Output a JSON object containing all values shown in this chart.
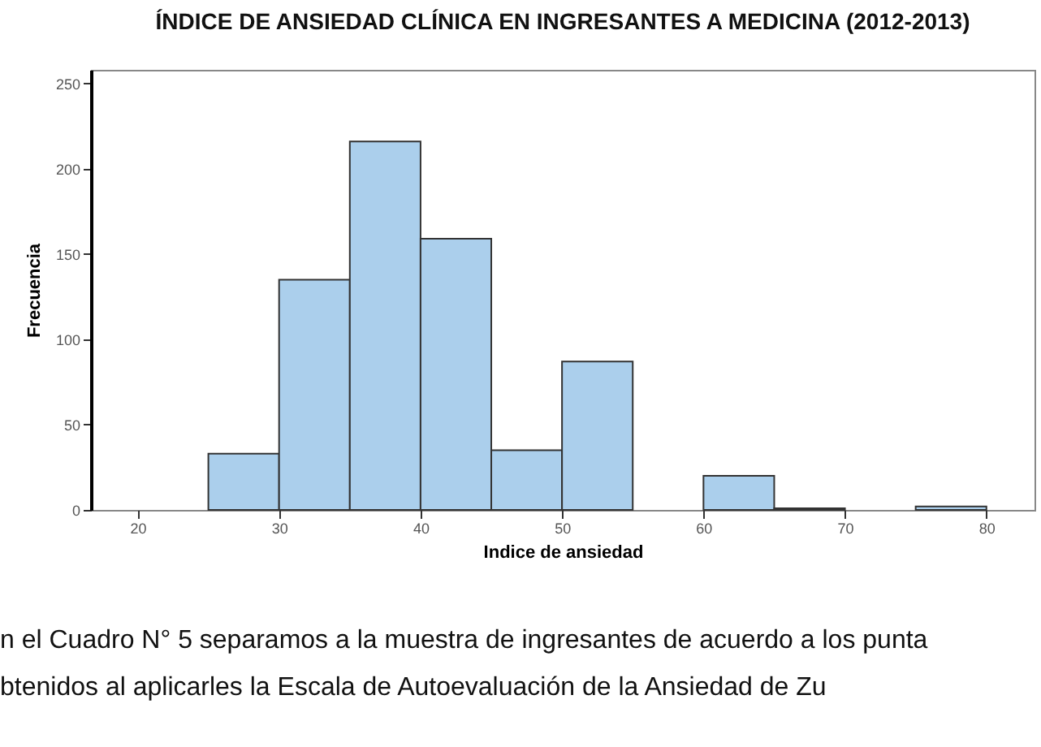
{
  "chart_data": {
    "type": "histogram",
    "title": "ÍNDICE DE ANSIEDAD CLÍNICA EN INGRESANTES A MEDICINA (2012-2013)",
    "xlabel": "Indice de ansiedad",
    "ylabel": "Frecuencia",
    "bins": [
      20,
      25,
      30,
      35,
      40,
      45,
      50,
      55,
      60,
      65,
      70,
      75,
      80
    ],
    "values": [
      0,
      33,
      135,
      216,
      159,
      35,
      87,
      0,
      20,
      1,
      0,
      2
    ],
    "color": "#abcfec",
    "xlim": [
      16.7,
      83.4
    ],
    "xticks": [
      20,
      30,
      40,
      50,
      60,
      70,
      80
    ],
    "ylim": [
      0,
      258
    ],
    "yticks": [
      0,
      50,
      100,
      150,
      200,
      250
    ],
    "annotations": [
      "n el Cuadro N° 5 separamos a la muestra de ingresantes de acuerdo a los punta",
      "btenidos al aplicarles la Escala de Autoevaluación de la Ansiedad de Zu"
    ]
  }
}
